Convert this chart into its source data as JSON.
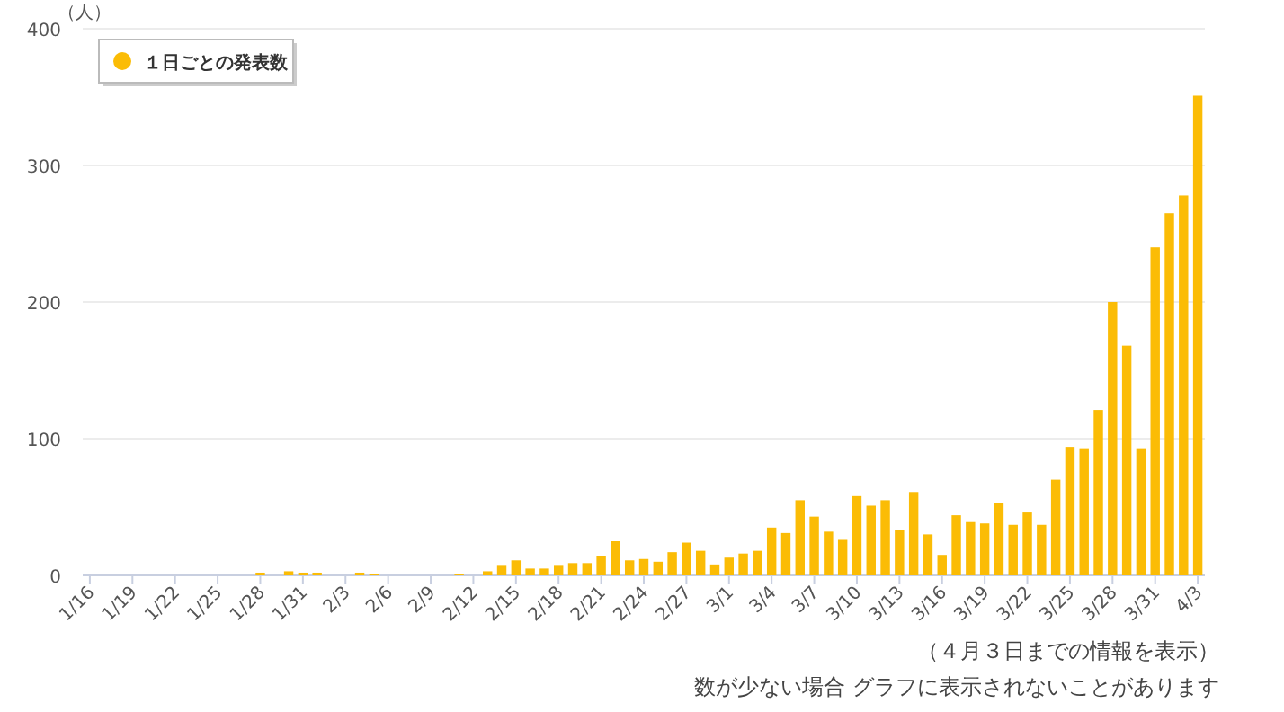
{
  "chart_data": {
    "type": "bar",
    "ylabel": "（人）",
    "categories": [
      "1/16",
      null,
      null,
      "1/19",
      null,
      null,
      "1/22",
      null,
      null,
      "1/25",
      null,
      null,
      "1/28",
      null,
      null,
      "1/31",
      null,
      null,
      "2/3",
      null,
      null,
      "2/6",
      null,
      null,
      "2/9",
      null,
      null,
      "2/12",
      null,
      null,
      "2/15",
      null,
      null,
      "2/18",
      null,
      null,
      "2/21",
      null,
      null,
      "2/24",
      null,
      null,
      "2/27",
      null,
      null,
      "3/1",
      null,
      null,
      "3/4",
      null,
      null,
      "3/7",
      null,
      null,
      "3/10",
      null,
      null,
      "3/13",
      null,
      null,
      "3/16",
      null,
      null,
      "3/19",
      null,
      null,
      "3/22",
      null,
      null,
      "3/25",
      null,
      null,
      "3/28",
      null,
      null,
      "3/31",
      null,
      null,
      "4/3"
    ],
    "series": [
      {
        "name": "１日ごとの発表数",
        "color": "#fbbc05",
        "values": [
          0,
          0,
          0,
          0,
          0,
          0,
          0,
          0,
          0,
          0,
          0,
          0,
          2,
          0,
          3,
          2,
          2,
          0,
          0,
          2,
          1,
          0,
          0,
          0,
          0,
          0,
          1,
          0,
          3,
          7,
          11,
          5,
          5,
          7,
          9,
          9,
          14,
          25,
          11,
          12,
          10,
          17,
          24,
          18,
          8,
          13,
          16,
          18,
          35,
          31,
          55,
          43,
          32,
          26,
          58,
          51,
          55,
          33,
          61,
          30,
          15,
          44,
          39,
          38,
          53,
          37,
          46,
          37,
          70,
          94,
          93,
          121,
          200,
          168,
          93,
          240,
          265,
          278,
          351
        ]
      }
    ],
    "ylim": [
      0,
      400
    ],
    "yticks": [
      0,
      100,
      200,
      300,
      400
    ],
    "grid": "y",
    "legend": "top left",
    "annotations": [
      "（４月３日までの情報を表示）",
      "数が少ない場合 グラフに表示されないことがあります"
    ]
  }
}
